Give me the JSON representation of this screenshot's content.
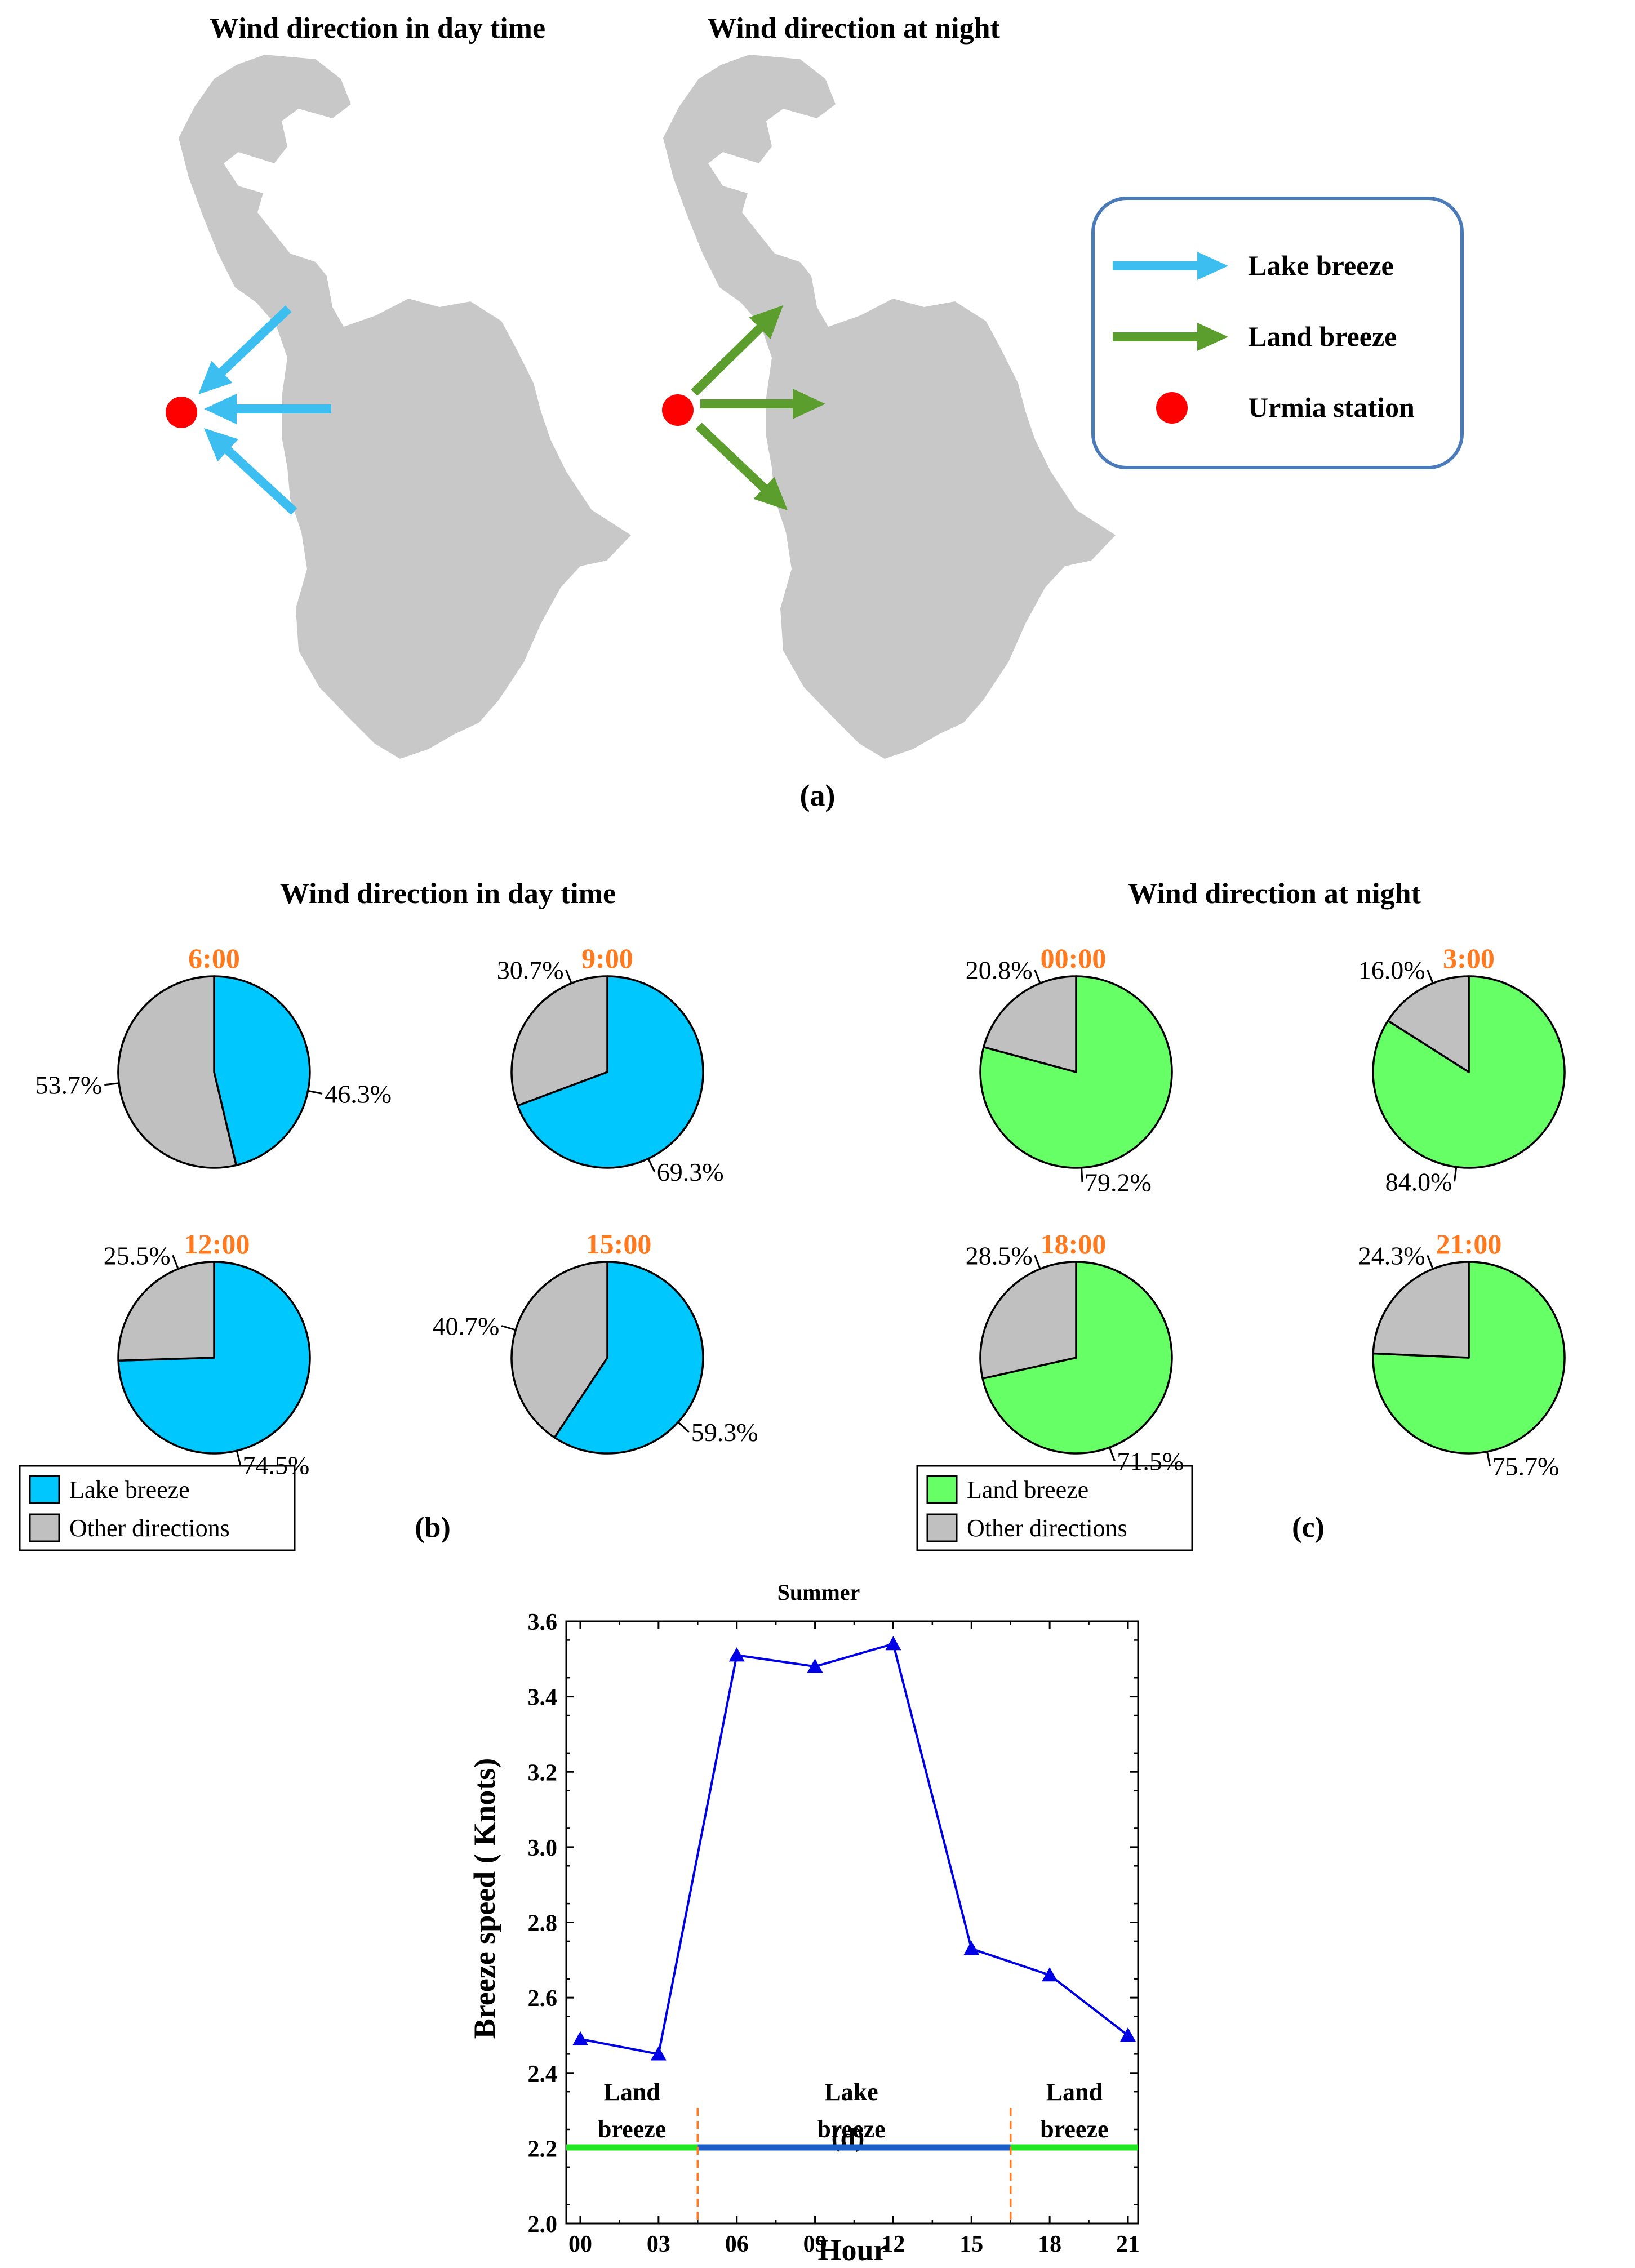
{
  "panel_a": {
    "title_day": "Wind direction in day time",
    "title_night": "Wind direction at night",
    "label": "(a)",
    "legend": [
      {
        "name": "Lake breeze",
        "symbol": "arrow",
        "color": "#3cbef0"
      },
      {
        "name": "Land breeze",
        "symbol": "arrow",
        "color": "#5b9e2e"
      },
      {
        "name": "Urmia station",
        "symbol": "dot",
        "color": "#ff0000"
      }
    ]
  },
  "panel_b": {
    "title": "Wind direction in day time",
    "label": "(b)"
  },
  "panel_c": {
    "title": "Wind direction at night",
    "label": "(c)"
  },
  "colors": {
    "lake": "#00c8ff",
    "land": "#66ff66",
    "other": "#c0c0c0",
    "hour": "#ff7a1f",
    "lake_arrow": "#3cbef0",
    "land_arrow": "#5b9e2e",
    "station": "#ff0000",
    "lake_shape": "#c8c8c8",
    "line": "#0000e6",
    "land_bar": "#22e622",
    "lake_bar": "#1a5fc8",
    "divider": "#ff7a1f"
  },
  "chart_data": [
    {
      "type": "pie",
      "panel": "b",
      "title": "6:00",
      "slices": [
        {
          "name": "Lake breeze",
          "value": 46.3
        },
        {
          "name": "Other directions",
          "value": 53.7
        }
      ],
      "labels": [
        "46.3%",
        "53.7%"
      ]
    },
    {
      "type": "pie",
      "panel": "b",
      "title": "9:00",
      "slices": [
        {
          "name": "Lake breeze",
          "value": 69.3
        },
        {
          "name": "Other directions",
          "value": 30.7
        }
      ],
      "labels": [
        "69.3%",
        "30.7%"
      ]
    },
    {
      "type": "pie",
      "panel": "b",
      "title": "12:00",
      "slices": [
        {
          "name": "Lake breeze",
          "value": 74.5
        },
        {
          "name": "Other directions",
          "value": 25.5
        }
      ],
      "labels": [
        "74.5%",
        "25.5%"
      ]
    },
    {
      "type": "pie",
      "panel": "b",
      "title": "15:00",
      "slices": [
        {
          "name": "Lake breeze",
          "value": 59.3
        },
        {
          "name": "Other directions",
          "value": 40.7
        }
      ],
      "labels": [
        "59.3%",
        "40.7%"
      ]
    },
    {
      "type": "pie",
      "panel": "c",
      "title": "00:00",
      "slices": [
        {
          "name": "Land breeze",
          "value": 79.2
        },
        {
          "name": "Other directions",
          "value": 20.8
        }
      ],
      "labels": [
        "79.2%",
        "20.8%"
      ]
    },
    {
      "type": "pie",
      "panel": "c",
      "title": "3:00",
      "slices": [
        {
          "name": "Land breeze",
          "value": 84.0
        },
        {
          "name": "Other directions",
          "value": 16.0
        }
      ],
      "labels": [
        "84.0%",
        "16.0%"
      ]
    },
    {
      "type": "pie",
      "panel": "c",
      "title": "18:00",
      "slices": [
        {
          "name": "Land breeze",
          "value": 71.5
        },
        {
          "name": "Other directions",
          "value": 28.5
        }
      ],
      "labels": [
        "71.5%",
        "28.5%"
      ]
    },
    {
      "type": "pie",
      "panel": "c",
      "title": "21:00",
      "slices": [
        {
          "name": "Land breeze",
          "value": 75.7
        },
        {
          "name": "Other directions",
          "value": 24.3
        }
      ],
      "labels": [
        "75.7%",
        "24.3%"
      ]
    },
    {
      "type": "line",
      "panel": "d",
      "title": "Summer",
      "xlabel": "Hour",
      "ylabel": "Breeze speed ( Knots)",
      "x": [
        "00",
        "03",
        "06",
        "09",
        "12",
        "15",
        "18",
        "21"
      ],
      "series": [
        {
          "values": [
            2.49,
            2.45,
            3.51,
            3.48,
            3.54,
            2.73,
            2.66,
            2.5
          ]
        }
      ],
      "ylim": [
        2.0,
        3.6
      ],
      "yticks": [
        "2.0",
        "2.2",
        "2.4",
        "2.6",
        "2.8",
        "3.0",
        "3.2",
        "3.4",
        "3.6"
      ],
      "regions": [
        {
          "lines": [
            "Land",
            "breeze"
          ],
          "from_hour": 0,
          "to_hour": 4.5,
          "kind": "land"
        },
        {
          "lines": [
            "Lake",
            "breeze"
          ],
          "from_hour": 4.5,
          "to_hour": 16.5,
          "kind": "lake"
        },
        {
          "lines": [
            "Land",
            "breeze"
          ],
          "from_hour": 16.5,
          "to_hour": 21,
          "kind": "land"
        }
      ],
      "dividers_at_hour": [
        4.5,
        16.5
      ],
      "label": "(d)"
    }
  ],
  "legend_b": [
    {
      "name": "Lake breeze",
      "kind": "lake"
    },
    {
      "name": "Other directions",
      "kind": "other"
    }
  ],
  "legend_c": [
    {
      "name": "Land breeze",
      "kind": "land"
    },
    {
      "name": "Other directions",
      "kind": "other"
    }
  ]
}
